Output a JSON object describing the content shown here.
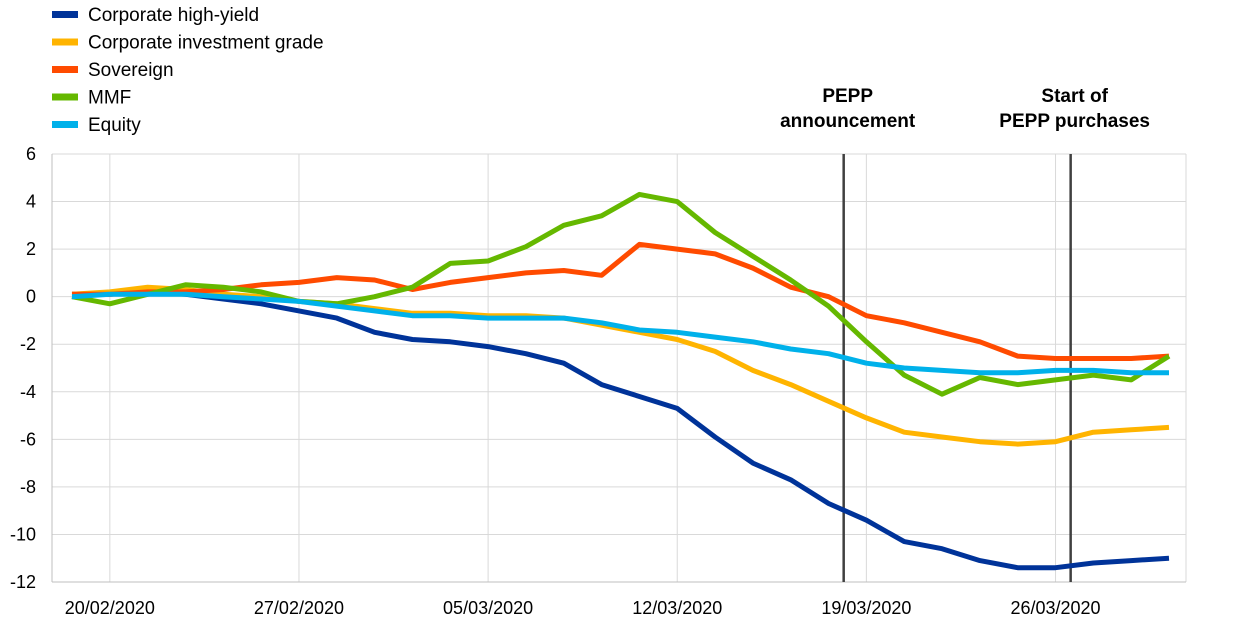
{
  "chart_data": {
    "type": "line",
    "title": "",
    "xlabel": "",
    "ylabel": "",
    "ylim": [
      -12,
      6
    ],
    "yticks": [
      6,
      4,
      2,
      0,
      -2,
      -4,
      -6,
      -8,
      -10,
      -12
    ],
    "ytick_labels": [
      "6",
      "4",
      "2",
      "0",
      "-2",
      "-4",
      "-6",
      "-8",
      "-10",
      "-12"
    ],
    "x_tick_labels": [
      "20/02/2020",
      "27/02/2020",
      "05/03/2020",
      "12/03/2020",
      "19/03/2020",
      "26/03/2020"
    ],
    "x_tick_indices": [
      1,
      6,
      11,
      16,
      21,
      26
    ],
    "n_points": 30,
    "grid": true,
    "legend_position": "top-left",
    "series": [
      {
        "name": "Corporate high-yield",
        "color": "#003399",
        "values": [
          0.1,
          0.1,
          0.2,
          0.1,
          -0.1,
          -0.3,
          -0.6,
          -0.9,
          -1.5,
          -1.8,
          -1.9,
          -2.1,
          -2.4,
          -2.8,
          -3.7,
          -4.2,
          -4.7,
          -5.9,
          -7.0,
          -7.7,
          -8.7,
          -9.4,
          -10.3,
          -10.6,
          -11.1,
          -11.4,
          -11.4,
          -11.2,
          -11.1,
          -11.0
        ]
      },
      {
        "name": "Corporate investment grade",
        "color": "#FFB400",
        "values": [
          0.1,
          0.2,
          0.4,
          0.3,
          0.1,
          0.0,
          -0.2,
          -0.3,
          -0.5,
          -0.7,
          -0.7,
          -0.8,
          -0.8,
          -0.9,
          -1.2,
          -1.5,
          -1.8,
          -2.3,
          -3.1,
          -3.7,
          -4.4,
          -5.1,
          -5.7,
          -5.9,
          -6.1,
          -6.2,
          -6.1,
          -5.7,
          -5.6,
          -5.5
        ]
      },
      {
        "name": "Sovereign",
        "color": "#FF4B00",
        "values": [
          0.1,
          0.1,
          0.2,
          0.2,
          0.3,
          0.5,
          0.6,
          0.8,
          0.7,
          0.3,
          0.6,
          0.8,
          1.0,
          1.1,
          0.9,
          2.2,
          2.0,
          1.8,
          1.2,
          0.4,
          0.0,
          -0.8,
          -1.1,
          -1.5,
          -1.9,
          -2.5,
          -2.6,
          -2.6,
          -2.6,
          -2.5
        ]
      },
      {
        "name": "MMF",
        "color": "#65B800",
        "values": [
          0.0,
          -0.3,
          0.1,
          0.5,
          0.4,
          0.2,
          -0.2,
          -0.3,
          0.0,
          0.4,
          1.4,
          1.5,
          2.1,
          3.0,
          3.4,
          4.3,
          4.0,
          2.7,
          1.7,
          0.7,
          -0.4,
          -1.9,
          -3.3,
          -4.1,
          -3.4,
          -3.7,
          -3.5,
          -3.3,
          -3.5,
          -2.5
        ]
      },
      {
        "name": "Equity",
        "color": "#00B1EA",
        "values": [
          0.0,
          0.1,
          0.1,
          0.1,
          0.0,
          -0.1,
          -0.2,
          -0.4,
          -0.6,
          -0.8,
          -0.8,
          -0.9,
          -0.9,
          -0.9,
          -1.1,
          -1.4,
          -1.5,
          -1.7,
          -1.9,
          -2.2,
          -2.4,
          -2.8,
          -3.0,
          -3.1,
          -3.2,
          -3.2,
          -3.1,
          -3.1,
          -3.2,
          -3.2
        ]
      }
    ],
    "annotations": [
      {
        "label_lines": [
          "PEPP",
          "announcement"
        ],
        "x_index": 20.4
      },
      {
        "label_lines": [
          "Start of",
          "PEPP purchases"
        ],
        "x_index": 26.4
      }
    ]
  }
}
